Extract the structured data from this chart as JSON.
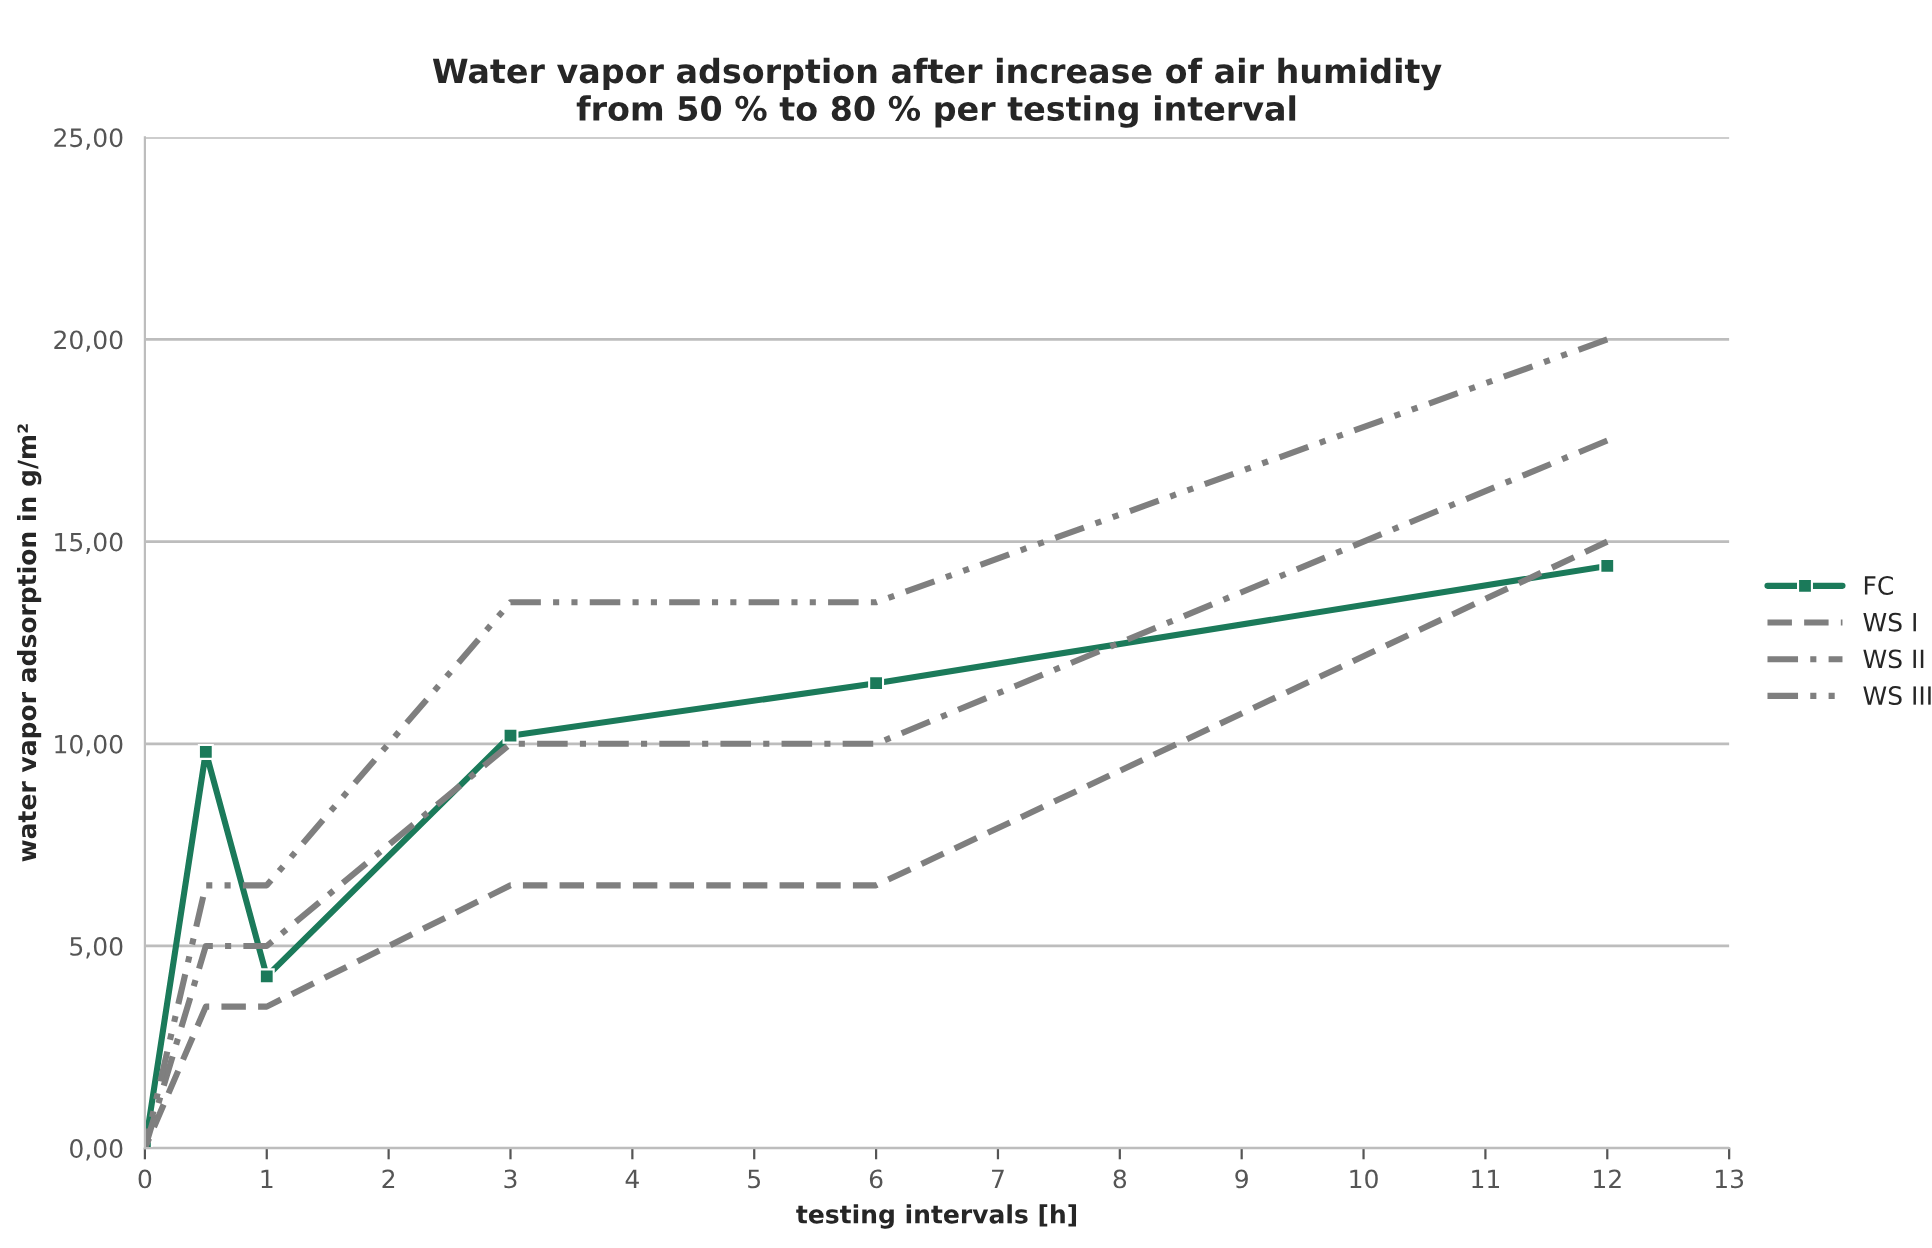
{
  "chart_data": {
    "type": "line",
    "title": "Water vapor adsorption after increase of air humidity\nfrom 50 % to 80 % per testing interval",
    "xlabel": "testing intervals [h]",
    "ylabel": "water vapor adsorption in g/m²",
    "x": [
      0,
      0.5,
      1,
      3,
      6,
      12
    ],
    "series": [
      {
        "name": "FC",
        "color": "#1b7a5a",
        "values": [
          0,
          9.8,
          4.25,
          10.2,
          11.5,
          14.4
        ],
        "marker": "square",
        "line_style": "solid"
      },
      {
        "name": "WS I",
        "color": "#7f7f7f",
        "values": [
          0,
          3.5,
          3.5,
          6.5,
          6.5,
          15
        ],
        "marker": "none",
        "line_style": "dashed"
      },
      {
        "name": "WS II",
        "color": "#7f7f7f",
        "values": [
          0,
          5,
          5,
          10,
          10,
          17.5
        ],
        "marker": "none",
        "line_style": "dashdot"
      },
      {
        "name": "WS III",
        "color": "#7f7f7f",
        "values": [
          0,
          6.5,
          6.5,
          13.5,
          13.5,
          20
        ],
        "marker": "none",
        "line_style": "dashdotdot"
      }
    ],
    "xlim": [
      0,
      13
    ],
    "xticks": [
      0,
      1,
      2,
      3,
      4,
      5,
      6,
      7,
      8,
      9,
      10,
      11,
      12,
      13
    ],
    "ylim": [
      0,
      25
    ],
    "yticks": [
      {
        "value": 0,
        "label": "0,00"
      },
      {
        "value": 5,
        "label": "5,00"
      },
      {
        "value": 10,
        "label": "10,00"
      },
      {
        "value": 15,
        "label": "15,00"
      },
      {
        "value": 20,
        "label": "20,00"
      },
      {
        "value": 25,
        "label": "25,00"
      }
    ],
    "grid": "y",
    "legend": "right"
  }
}
